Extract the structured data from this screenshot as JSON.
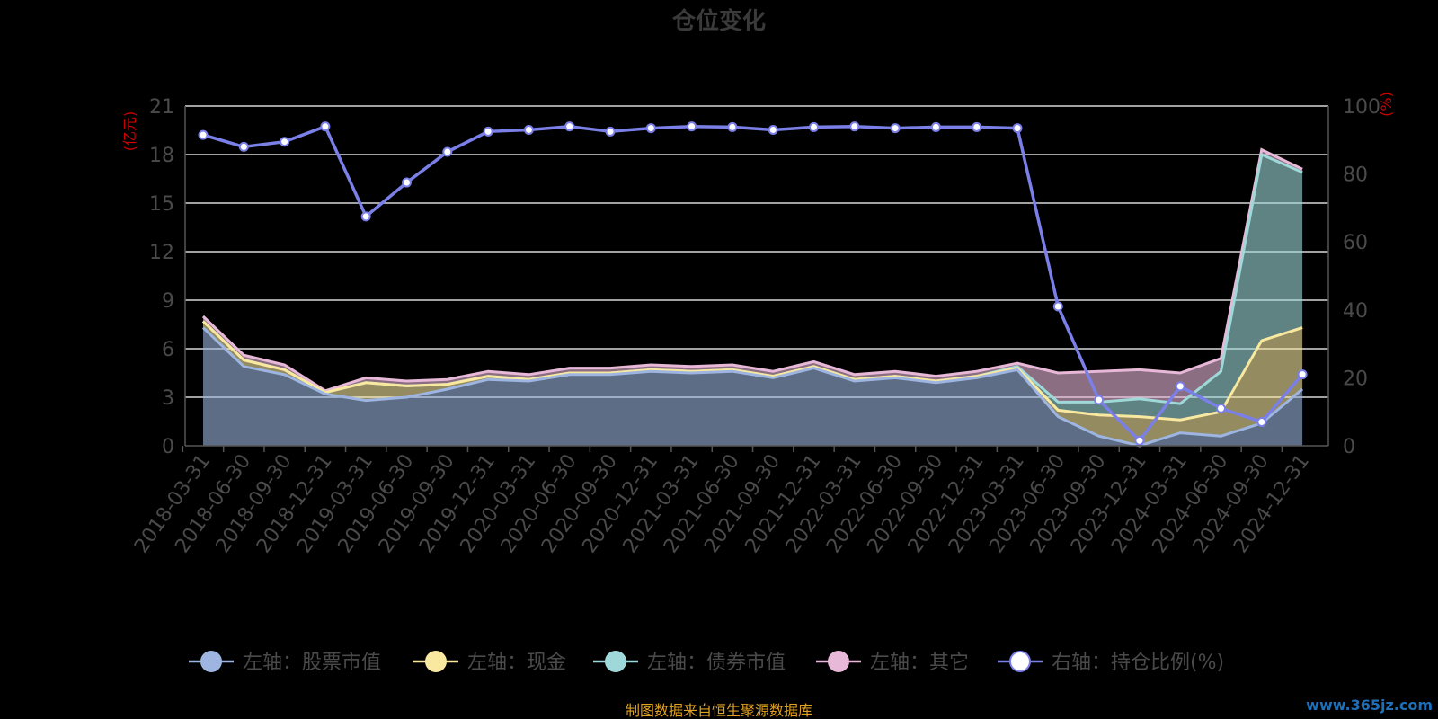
{
  "chart_data": {
    "type": "area",
    "title": "仓位变化",
    "left_axis_unit": "(亿元)",
    "right_axis_unit": "(%)",
    "ylim_left": [
      0,
      21
    ],
    "yticks_left": [
      0,
      3,
      6,
      9,
      12,
      15,
      18,
      21
    ],
    "ylim_right": [
      0,
      100
    ],
    "yticks_right": [
      0,
      20,
      40,
      60,
      80,
      100
    ],
    "grid": true,
    "legend_position": "bottom",
    "categories": [
      "2018-03-31",
      "2018-06-30",
      "2018-09-30",
      "2018-12-31",
      "2019-03-31",
      "2019-06-30",
      "2019-09-30",
      "2019-12-31",
      "2020-03-31",
      "2020-06-30",
      "2020-09-30",
      "2020-12-31",
      "2021-03-31",
      "2021-06-30",
      "2021-09-30",
      "2021-12-31",
      "2022-03-31",
      "2022-06-30",
      "2022-09-30",
      "2022-12-31",
      "2023-03-31",
      "2023-06-30",
      "2023-09-30",
      "2023-12-31",
      "2024-03-31",
      "2024-06-30",
      "2024-09-30",
      "2024-12-31"
    ],
    "series": [
      {
        "name": "左轴：股票市值",
        "axis": "left",
        "stack": true,
        "color": "#9db5e0",
        "values": [
          7.3,
          4.9,
          4.4,
          3.2,
          2.8,
          3.0,
          3.5,
          4.1,
          4.0,
          4.4,
          4.4,
          4.6,
          4.5,
          4.6,
          4.2,
          4.8,
          4.0,
          4.2,
          3.9,
          4.2,
          4.7,
          1.8,
          0.6,
          0.0,
          0.8,
          0.6,
          1.4,
          3.5
        ]
      },
      {
        "name": "左轴：现金",
        "axis": "left",
        "stack": true,
        "color": "#f8e8a0",
        "values": [
          0.4,
          0.4,
          0.3,
          0.1,
          1.1,
          0.7,
          0.3,
          0.2,
          0.1,
          0.1,
          0.1,
          0.1,
          0.1,
          0.1,
          0.1,
          0.1,
          0.1,
          0.1,
          0.1,
          0.1,
          0.1,
          0.4,
          1.3,
          1.8,
          0.8,
          1.5,
          5.1,
          3.8
        ]
      },
      {
        "name": "左轴：债券市值",
        "axis": "left",
        "stack": true,
        "color": "#9fd8d8",
        "values": [
          0,
          0,
          0,
          0,
          0,
          0,
          0,
          0,
          0,
          0,
          0,
          0,
          0,
          0,
          0,
          0,
          0,
          0,
          0,
          0,
          0.1,
          0.5,
          0.8,
          1.1,
          1.0,
          2.5,
          11.5,
          9.6
        ]
      },
      {
        "name": "左轴：其它",
        "axis": "left",
        "stack": true,
        "color": "#e8b8d8",
        "values": [
          0.3,
          0.3,
          0.3,
          0.1,
          0.3,
          0.3,
          0.3,
          0.3,
          0.3,
          0.3,
          0.3,
          0.3,
          0.3,
          0.3,
          0.3,
          0.3,
          0.3,
          0.3,
          0.3,
          0.3,
          0.2,
          1.8,
          1.9,
          1.8,
          1.9,
          0.8,
          0.3,
          0.2
        ]
      },
      {
        "name": "右轴：持仓比例(%)",
        "axis": "right",
        "type": "line",
        "color": "#7b7fe8",
        "values": [
          91.5,
          88.0,
          89.5,
          94.0,
          67.5,
          77.5,
          86.5,
          92.5,
          93.0,
          94.0,
          92.5,
          93.5,
          94.0,
          93.8,
          93.0,
          93.8,
          94.0,
          93.5,
          93.8,
          93.8,
          93.5,
          41.0,
          13.5,
          1.5,
          17.5,
          11.0,
          7.0,
          21.0
        ]
      }
    ],
    "source_note": "制图数据来自恒生聚源数据库",
    "watermark": "www.365jz.com"
  }
}
